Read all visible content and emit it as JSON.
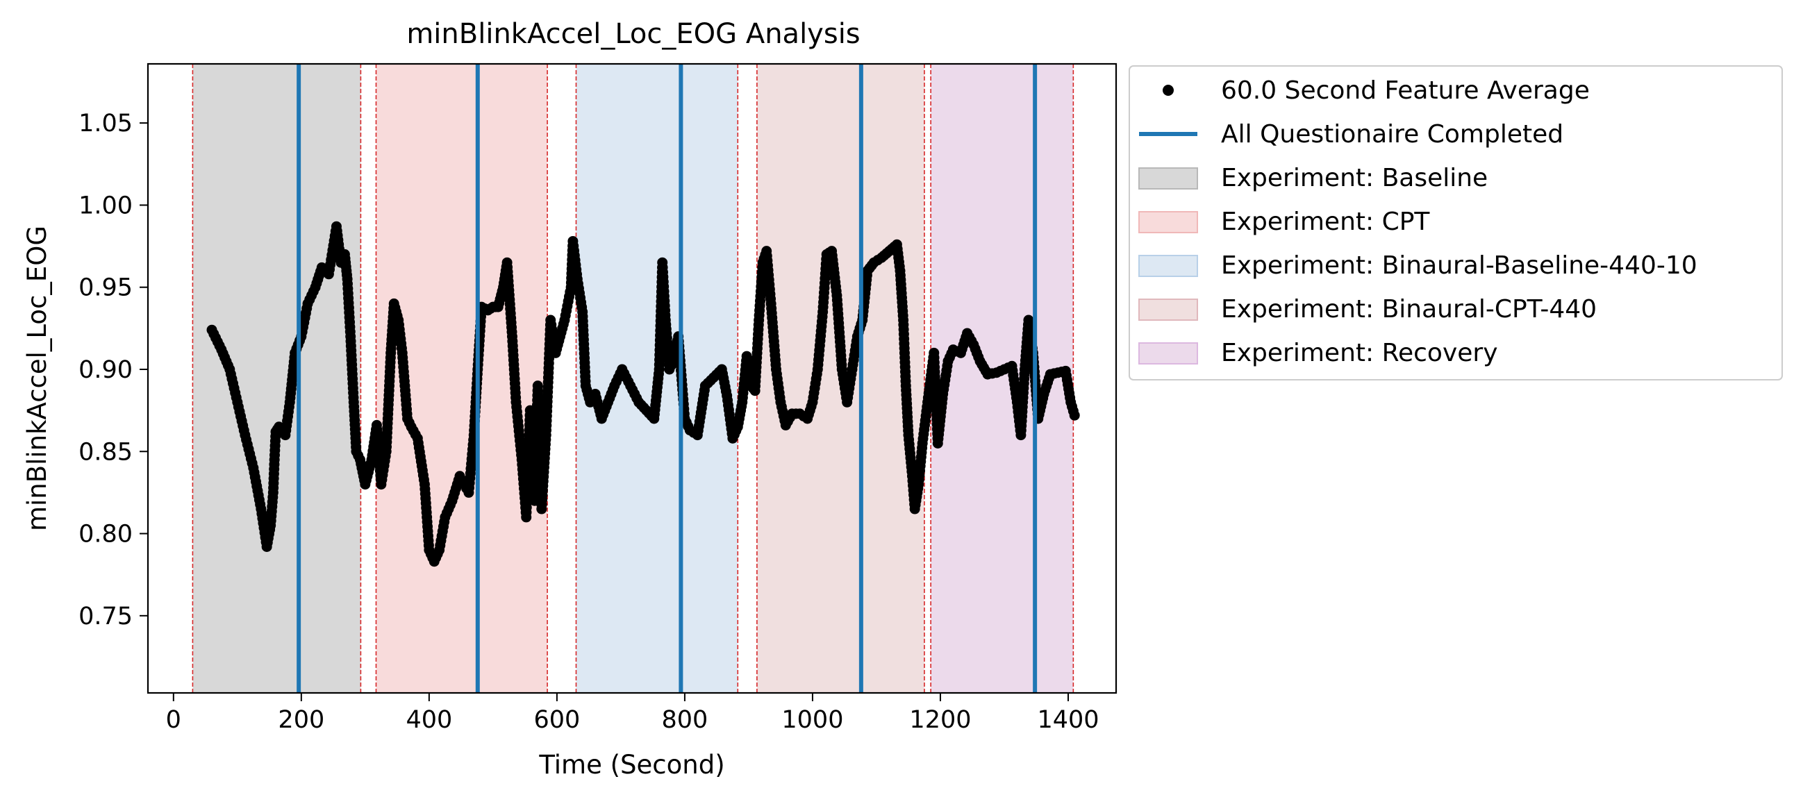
{
  "chart_data": {
    "type": "scatter",
    "title": "minBlinkAccel_Loc_EOG Analysis",
    "xlabel": "Time (Second)",
    "ylabel": "minBlinkAccel_Loc_EOG",
    "xlim": [
      -40,
      1475
    ],
    "ylim": [
      0.703,
      1.086
    ],
    "xticks": [
      0,
      200,
      400,
      600,
      800,
      1000,
      1200,
      1400
    ],
    "yticks": [
      0.75,
      0.8,
      0.85,
      0.9,
      0.95,
      1.0,
      1.05
    ],
    "xtick_labels": [
      "0",
      "200",
      "400",
      "600",
      "800",
      "1000",
      "1200",
      "1400"
    ],
    "ytick_labels": [
      "0.75",
      "0.80",
      "0.85",
      "0.90",
      "0.95",
      "1.00",
      "1.05"
    ],
    "grid": false,
    "legend_position": "outside upper right",
    "legend": [
      {
        "label": "60.0 Second Feature Average",
        "kind": "marker",
        "color": "#000000"
      },
      {
        "label": "All Questionaire Completed",
        "kind": "line",
        "color": "#1f77b4"
      },
      {
        "label": "Experiment: Baseline",
        "kind": "patch",
        "color": "#d8d8d8",
        "edge": "#b8b8b8"
      },
      {
        "label": "Experiment: CPT",
        "kind": "patch",
        "color": "#f8dbdb",
        "edge": "#f0b8b8"
      },
      {
        "label": "Experiment: Binaural-Baseline-440-10",
        "kind": "patch",
        "color": "#dde8f3",
        "edge": "#b8d0e8"
      },
      {
        "label": "Experiment: Binaural-CPT-440",
        "kind": "patch",
        "color": "#f0dfdf",
        "edge": "#e0b8bc"
      },
      {
        "label": "Experiment: Recovery",
        "kind": "patch",
        "color": "#ecdaeb",
        "edge": "#dcb8e0"
      }
    ],
    "experiment_spans": [
      {
        "name": "Baseline",
        "start": 30,
        "end": 293,
        "color": "#d8d8d8"
      },
      {
        "name": "CPT",
        "start": 317,
        "end": 585,
        "color": "#f8dbdb"
      },
      {
        "name": "Binaural-Baseline-440-10",
        "start": 630,
        "end": 883,
        "color": "#dde8f3"
      },
      {
        "name": "Binaural-CPT-440",
        "start": 913,
        "end": 1175,
        "color": "#f0dfdf"
      },
      {
        "name": "Recovery",
        "start": 1185,
        "end": 1408,
        "color": "#ecdaeb"
      }
    ],
    "boundary_lines_color": "#d62728",
    "boundary_lines": [
      30,
      293,
      317,
      585,
      630,
      883,
      913,
      1175,
      1185,
      1408
    ],
    "questionnaire_lines": [
      196,
      476,
      794,
      1076,
      1348
    ],
    "questionnaire_color": "#1f77b4",
    "series": [
      {
        "name": "60.0 Second Feature Average",
        "color": "#000000",
        "points": [
          [
            60,
            0.924
          ],
          [
            75,
            0.912
          ],
          [
            88,
            0.9
          ],
          [
            100,
            0.88
          ],
          [
            112,
            0.86
          ],
          [
            125,
            0.84
          ],
          [
            137,
            0.815
          ],
          [
            146,
            0.792
          ],
          [
            152,
            0.805
          ],
          [
            156,
            0.825
          ],
          [
            158,
            0.845
          ],
          [
            160,
            0.862
          ],
          [
            165,
            0.865
          ],
          [
            175,
            0.86
          ],
          [
            182,
            0.88
          ],
          [
            190,
            0.91
          ],
          [
            200,
            0.92
          ],
          [
            210,
            0.94
          ],
          [
            222,
            0.95
          ],
          [
            232,
            0.962
          ],
          [
            243,
            0.958
          ],
          [
            255,
            0.987
          ],
          [
            262,
            0.965
          ],
          [
            268,
            0.97
          ],
          [
            272,
            0.955
          ],
          [
            277,
            0.92
          ],
          [
            282,
            0.88
          ],
          [
            286,
            0.85
          ],
          [
            292,
            0.845
          ],
          [
            300,
            0.83
          ],
          [
            310,
            0.845
          ],
          [
            318,
            0.866
          ],
          [
            325,
            0.83
          ],
          [
            333,
            0.85
          ],
          [
            340,
            0.91
          ],
          [
            345,
            0.94
          ],
          [
            352,
            0.93
          ],
          [
            358,
            0.91
          ],
          [
            366,
            0.87
          ],
          [
            372,
            0.865
          ],
          [
            382,
            0.858
          ],
          [
            393,
            0.83
          ],
          [
            400,
            0.79
          ],
          [
            408,
            0.783
          ],
          [
            416,
            0.79
          ],
          [
            425,
            0.81
          ],
          [
            436,
            0.82
          ],
          [
            448,
            0.835
          ],
          [
            455,
            0.83
          ],
          [
            462,
            0.825
          ],
          [
            470,
            0.86
          ],
          [
            476,
            0.9
          ],
          [
            482,
            0.938
          ],
          [
            492,
            0.936
          ],
          [
            500,
            0.938
          ],
          [
            508,
            0.938
          ],
          [
            516,
            0.95
          ],
          [
            522,
            0.965
          ],
          [
            530,
            0.92
          ],
          [
            536,
            0.88
          ],
          [
            545,
            0.845
          ],
          [
            552,
            0.81
          ],
          [
            558,
            0.875
          ],
          [
            565,
            0.82
          ],
          [
            570,
            0.89
          ],
          [
            576,
            0.815
          ],
          [
            583,
            0.86
          ],
          [
            590,
            0.93
          ],
          [
            598,
            0.91
          ],
          [
            612,
            0.93
          ],
          [
            622,
            0.95
          ],
          [
            625,
            0.978
          ],
          [
            632,
            0.955
          ],
          [
            640,
            0.935
          ],
          [
            645,
            0.89
          ],
          [
            652,
            0.88
          ],
          [
            660,
            0.885
          ],
          [
            670,
            0.87
          ],
          [
            680,
            0.88
          ],
          [
            690,
            0.89
          ],
          [
            702,
            0.9
          ],
          [
            715,
            0.89
          ],
          [
            728,
            0.88
          ],
          [
            740,
            0.875
          ],
          [
            752,
            0.87
          ],
          [
            760,
            0.9
          ],
          [
            765,
            0.965
          ],
          [
            770,
            0.93
          ],
          [
            776,
            0.9
          ],
          [
            782,
            0.905
          ],
          [
            790,
            0.92
          ],
          [
            800,
            0.87
          ],
          [
            808,
            0.863
          ],
          [
            820,
            0.86
          ],
          [
            832,
            0.89
          ],
          [
            845,
            0.895
          ],
          [
            858,
            0.9
          ],
          [
            866,
            0.884
          ],
          [
            875,
            0.858
          ],
          [
            883,
            0.865
          ],
          [
            890,
            0.88
          ],
          [
            897,
            0.908
          ],
          [
            904,
            0.89
          ],
          [
            910,
            0.887
          ],
          [
            916,
            0.93
          ],
          [
            922,
            0.965
          ],
          [
            928,
            0.972
          ],
          [
            935,
            0.94
          ],
          [
            943,
            0.9
          ],
          [
            950,
            0.88
          ],
          [
            958,
            0.866
          ],
          [
            968,
            0.873
          ],
          [
            980,
            0.873
          ],
          [
            992,
            0.87
          ],
          [
            1000,
            0.88
          ],
          [
            1008,
            0.9
          ],
          [
            1016,
            0.935
          ],
          [
            1022,
            0.97
          ],
          [
            1030,
            0.972
          ],
          [
            1038,
            0.945
          ],
          [
            1046,
            0.9
          ],
          [
            1054,
            0.88
          ],
          [
            1062,
            0.9
          ],
          [
            1070,
            0.92
          ],
          [
            1078,
            0.93
          ],
          [
            1086,
            0.96
          ],
          [
            1096,
            0.965
          ],
          [
            1108,
            0.968
          ],
          [
            1120,
            0.972
          ],
          [
            1132,
            0.976
          ],
          [
            1137,
            0.96
          ],
          [
            1142,
            0.93
          ],
          [
            1146,
            0.89
          ],
          [
            1150,
            0.86
          ],
          [
            1156,
            0.835
          ],
          [
            1160,
            0.815
          ],
          [
            1166,
            0.83
          ],
          [
            1172,
            0.855
          ],
          [
            1180,
            0.88
          ],
          [
            1190,
            0.91
          ],
          [
            1196,
            0.855
          ],
          [
            1204,
            0.885
          ],
          [
            1212,
            0.905
          ],
          [
            1220,
            0.912
          ],
          [
            1232,
            0.91
          ],
          [
            1242,
            0.922
          ],
          [
            1252,
            0.915
          ],
          [
            1262,
            0.905
          ],
          [
            1274,
            0.897
          ],
          [
            1288,
            0.898
          ],
          [
            1300,
            0.9
          ],
          [
            1312,
            0.902
          ],
          [
            1320,
            0.88
          ],
          [
            1326,
            0.86
          ],
          [
            1332,
            0.9
          ],
          [
            1338,
            0.93
          ],
          [
            1345,
            0.91
          ],
          [
            1353,
            0.87
          ],
          [
            1362,
            0.885
          ],
          [
            1372,
            0.897
          ],
          [
            1384,
            0.898
          ],
          [
            1396,
            0.899
          ],
          [
            1404,
            0.88
          ],
          [
            1410,
            0.872
          ]
        ]
      }
    ]
  }
}
